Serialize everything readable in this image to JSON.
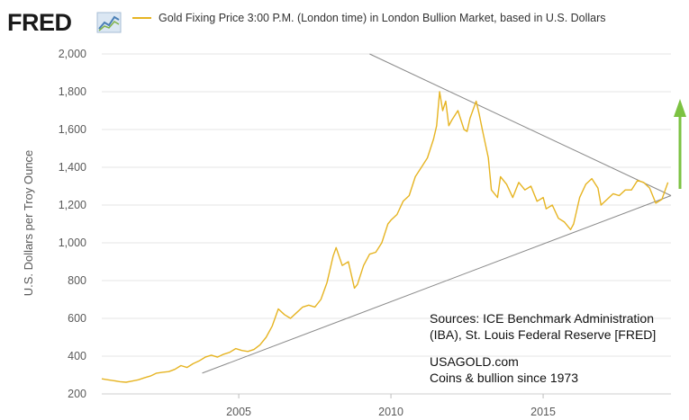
{
  "header": {
    "logo_text": "FRED",
    "logo_icon": "line-chart-icon",
    "legend_label": "Gold Fixing Price 3:00 P.M. (London time) in London Bullion Market, based in U.S. Dollars"
  },
  "annotations": {
    "sources_line1": "Sources:  ICE Benchmark Administration",
    "sources_line2": "(IBA), St. Louis Federal Reserve [FRED]",
    "brand_line1": "USAGOLD.com",
    "brand_line2": "Coins & bullion since 1973",
    "arrow_icon": "up-arrow-icon"
  },
  "colors": {
    "series": "#e6b422",
    "trendline": "#8a8a8a",
    "arrow": "#7cc242",
    "grid": "#e4e4e4"
  },
  "chart_data": {
    "type": "line",
    "title": "",
    "xlabel": "",
    "ylabel": "U.S. Dollars per Troy Ounce",
    "xlim": [
      2000.5,
      2019.2
    ],
    "ylim": [
      200,
      2000
    ],
    "grid": true,
    "legend": "top",
    "y_ticks": [
      200,
      400,
      600,
      800,
      1000,
      1200,
      1400,
      1600,
      1800,
      2000
    ],
    "y_tick_labels": [
      "200",
      "400",
      "600",
      "800",
      "1,000",
      "1,200",
      "1,400",
      "1,600",
      "1,800",
      "2,000"
    ],
    "x_ticks": [
      2005,
      2010,
      2015
    ],
    "x_tick_labels": [
      "2005",
      "2010",
      "2015"
    ],
    "series": [
      {
        "name": "Gold Fixing Price 3:00 P.M. (London time) in London Bullion Market, based in U.S. Dollars",
        "x": [
          2000.5,
          2000.7,
          2000.9,
          2001.1,
          2001.3,
          2001.5,
          2001.7,
          2001.9,
          2002.1,
          2002.3,
          2002.5,
          2002.7,
          2002.9,
          2003.1,
          2003.3,
          2003.5,
          2003.7,
          2003.9,
          2004.1,
          2004.3,
          2004.5,
          2004.7,
          2004.9,
          2005.1,
          2005.3,
          2005.5,
          2005.7,
          2005.9,
          2006.1,
          2006.3,
          2006.5,
          2006.7,
          2006.9,
          2007.1,
          2007.3,
          2007.5,
          2007.7,
          2007.9,
          2008.1,
          2008.2,
          2008.4,
          2008.6,
          2008.8,
          2008.9,
          2009.1,
          2009.3,
          2009.5,
          2009.7,
          2009.9,
          2010.0,
          2010.2,
          2010.4,
          2010.6,
          2010.8,
          2011.0,
          2011.2,
          2011.4,
          2011.5,
          2011.6,
          2011.7,
          2011.8,
          2011.9,
          2012.0,
          2012.2,
          2012.4,
          2012.5,
          2012.6,
          2012.8,
          2012.9,
          2013.0,
          2013.2,
          2013.3,
          2013.5,
          2013.6,
          2013.8,
          2014.0,
          2014.2,
          2014.4,
          2014.6,
          2014.8,
          2015.0,
          2015.1,
          2015.3,
          2015.5,
          2015.7,
          2015.9,
          2016.0,
          2016.2,
          2016.4,
          2016.6,
          2016.8,
          2016.9,
          2017.1,
          2017.3,
          2017.5,
          2017.7,
          2017.9,
          2018.1,
          2018.3,
          2018.5,
          2018.7,
          2018.9,
          2019.1
        ],
        "values": [
          280,
          275,
          270,
          265,
          262,
          268,
          275,
          285,
          295,
          310,
          315,
          318,
          330,
          350,
          340,
          360,
          375,
          395,
          405,
          395,
          410,
          420,
          440,
          430,
          425,
          435,
          460,
          500,
          560,
          650,
          620,
          600,
          630,
          660,
          670,
          660,
          700,
          790,
          930,
          975,
          880,
          900,
          760,
          780,
          880,
          940,
          950,
          1000,
          1100,
          1120,
          1150,
          1220,
          1250,
          1350,
          1400,
          1450,
          1550,
          1620,
          1800,
          1700,
          1750,
          1620,
          1650,
          1700,
          1600,
          1590,
          1660,
          1750,
          1680,
          1600,
          1450,
          1280,
          1240,
          1350,
          1310,
          1240,
          1320,
          1280,
          1300,
          1220,
          1240,
          1180,
          1200,
          1130,
          1110,
          1070,
          1100,
          1240,
          1310,
          1340,
          1290,
          1200,
          1230,
          1260,
          1250,
          1280,
          1280,
          1330,
          1320,
          1290,
          1210,
          1230,
          1320
        ]
      }
    ],
    "trendlines": [
      {
        "x": [
          2009.3,
          2019.2
        ],
        "values": [
          2000,
          1250
        ]
      },
      {
        "x": [
          2003.8,
          2019.2
        ],
        "values": [
          310,
          1250
        ]
      }
    ]
  }
}
